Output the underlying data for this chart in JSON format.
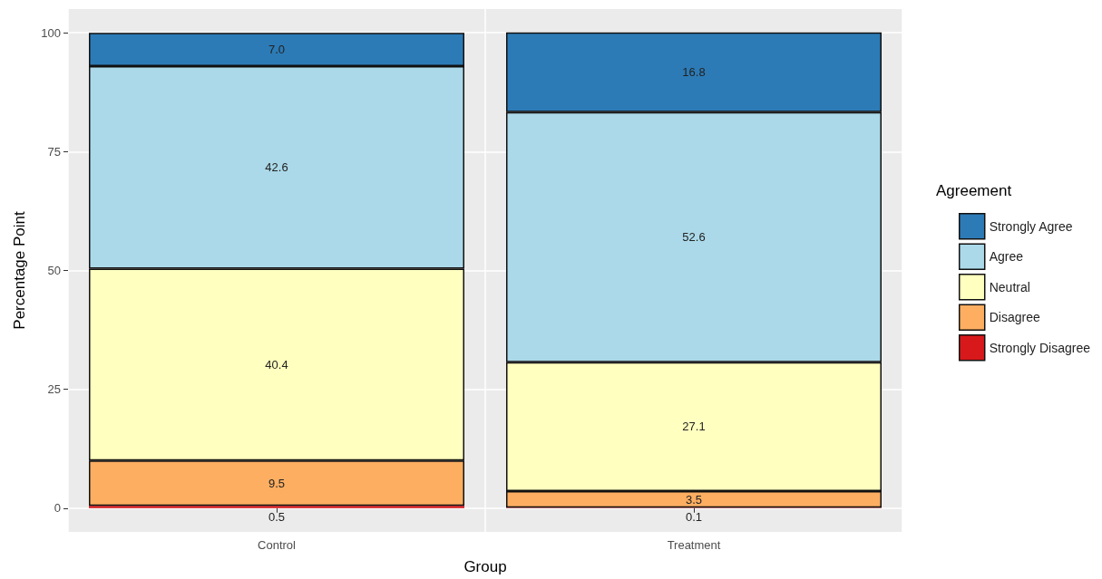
{
  "chart_data": {
    "type": "bar",
    "stacked": true,
    "xlabel": "Group",
    "ylabel": "Percentage Point",
    "legend_title": "Agreement",
    "legend": "right",
    "grid": true,
    "categories": [
      "Control",
      "Treatment"
    ],
    "ylim": [
      -5,
      105
    ],
    "yticks": [
      0,
      25,
      50,
      75,
      100
    ],
    "series": [
      {
        "name": "Strongly Disagree",
        "color": "#d7191c",
        "values": [
          0.5,
          0.1
        ],
        "value_labels": [
          "0.5",
          "0.1"
        ]
      },
      {
        "name": "Disagree",
        "color": "#fdae61",
        "values": [
          9.5,
          3.5
        ],
        "value_labels": [
          "9.5",
          "3.5"
        ]
      },
      {
        "name": "Neutral",
        "color": "#ffffbf",
        "values": [
          40.4,
          27.1
        ],
        "value_labels": [
          "40.4",
          "27.1"
        ]
      },
      {
        "name": "Agree",
        "color": "#abd9e9",
        "values": [
          42.6,
          52.6
        ],
        "value_labels": [
          "42.6",
          "52.6"
        ]
      },
      {
        "name": "Strongly Agree",
        "color": "#2c7bb6",
        "values": [
          7.0,
          16.8
        ],
        "value_labels": [
          "7.0",
          "16.8"
        ]
      }
    ]
  }
}
